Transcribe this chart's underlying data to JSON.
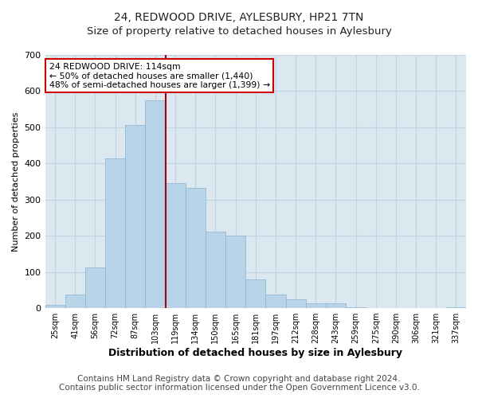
{
  "title": "24, REDWOOD DRIVE, AYLESBURY, HP21 7TN",
  "subtitle": "Size of property relative to detached houses in Aylesbury",
  "xlabel": "Distribution of detached houses by size in Aylesbury",
  "ylabel": "Number of detached properties",
  "bar_labels": [
    "25sqm",
    "41sqm",
    "56sqm",
    "72sqm",
    "87sqm",
    "103sqm",
    "119sqm",
    "134sqm",
    "150sqm",
    "165sqm",
    "181sqm",
    "197sqm",
    "212sqm",
    "228sqm",
    "243sqm",
    "259sqm",
    "275sqm",
    "290sqm",
    "306sqm",
    "321sqm",
    "337sqm"
  ],
  "bar_values": [
    8,
    37,
    113,
    415,
    507,
    575,
    345,
    333,
    212,
    201,
    80,
    37,
    25,
    13,
    13,
    3,
    0,
    0,
    0,
    0,
    2
  ],
  "bar_color": "#b8d4e8",
  "bar_edge_color": "#8ab4d0",
  "vline_x": 6.0,
  "vline_color": "#aa0000",
  "annotation_title": "24 REDWOOD DRIVE: 114sqm",
  "annotation_line1": "← 50% of detached houses are smaller (1,440)",
  "annotation_line2": "48% of semi-detached houses are larger (1,399) →",
  "annotation_box_color": "#ffffff",
  "annotation_box_edge": "#cc0000",
  "ylim": [
    0,
    700
  ],
  "yticks": [
    0,
    100,
    200,
    300,
    400,
    500,
    600,
    700
  ],
  "footer1": "Contains HM Land Registry data © Crown copyright and database right 2024.",
  "footer2": "Contains public sector information licensed under the Open Government Licence v3.0.",
  "bg_color": "#ffffff",
  "plot_bg_color": "#dce8f0",
  "grid_color": "#c0d4e4",
  "title_fontsize": 10,
  "subtitle_fontsize": 9.5,
  "xlabel_fontsize": 9,
  "ylabel_fontsize": 8,
  "footer_fontsize": 7.5
}
